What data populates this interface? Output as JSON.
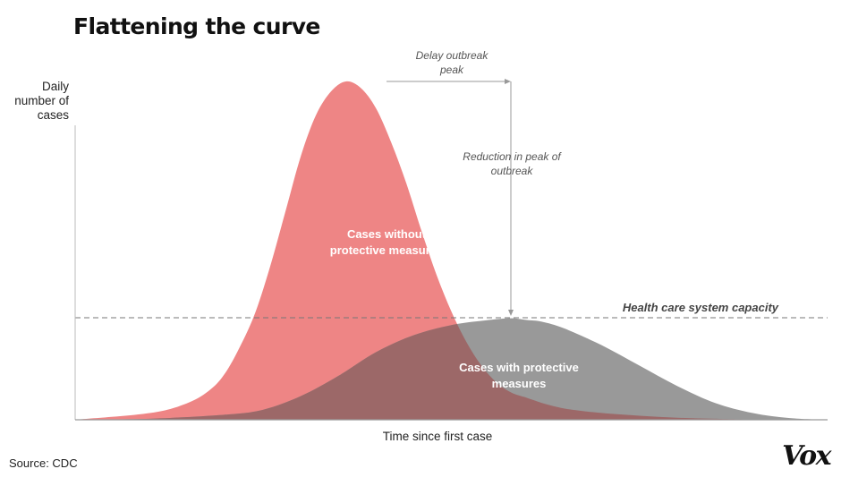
{
  "chart_data": {
    "type": "area",
    "title": "Flattening the curve",
    "xlabel": "Time since first case",
    "ylabel_lines": [
      "Daily",
      "number of",
      "cases"
    ],
    "xlim": [
      0,
      100
    ],
    "ylim": [
      0,
      100
    ],
    "grid": false,
    "series": [
      {
        "name": "Cases without protective measures",
        "label_lines": [
          "Cases without",
          "protective measures"
        ],
        "color": "#ee8585",
        "x": [
          0,
          10,
          15,
          18,
          20,
          22,
          24,
          26,
          28,
          30,
          32,
          34,
          36,
          38,
          40,
          42,
          44,
          46,
          48,
          50,
          52,
          54,
          56,
          58,
          60,
          62,
          64,
          66,
          70,
          75,
          80,
          85,
          90,
          100
        ],
        "y": [
          0,
          2,
          5,
          9,
          14,
          22,
          32,
          46,
          62,
          78,
          90,
          97,
          100,
          98,
          92,
          82,
          70,
          56,
          43,
          32,
          23,
          16,
          11,
          8,
          6.5,
          5,
          3.8,
          3,
          2,
          1.2,
          0.6,
          0.3,
          0.1,
          0
        ]
      },
      {
        "name": "Cases with protective measures",
        "label_lines": [
          "Cases with protective",
          "measures"
        ],
        "color": "#999999",
        "x": [
          0,
          10,
          20,
          25,
          30,
          35,
          40,
          45,
          50,
          55,
          58,
          60,
          62,
          65,
          70,
          75,
          80,
          85,
          90,
          95,
          100
        ],
        "y": [
          0,
          0.3,
          1.5,
          3,
          7,
          13,
          20,
          25,
          28,
          29.5,
          30,
          29.5,
          29,
          27,
          22,
          16,
          10,
          5,
          2,
          0.5,
          0
        ]
      }
    ],
    "overlap_color": "#9c6868",
    "threshold": {
      "label": "Health care system capacity",
      "y": 30
    },
    "annotations": [
      {
        "name": "delay",
        "lines": [
          "Delay outbreak",
          "peak"
        ]
      },
      {
        "name": "reduction",
        "lines": [
          "Reduction in peak of",
          "outbreak"
        ]
      }
    ]
  },
  "source": "Source: CDC",
  "logo": "Vox"
}
